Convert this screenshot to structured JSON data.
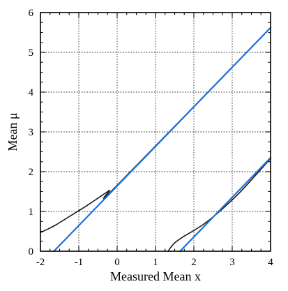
{
  "chart_data": {
    "type": "line",
    "title": "",
    "xlabel": "Measured Mean x",
    "ylabel": "Mean μ",
    "xlim": [
      -2,
      4
    ],
    "ylim": [
      0,
      6
    ],
    "x_ticks": [
      "-2",
      "-1",
      "0",
      "1",
      "2",
      "3",
      "4"
    ],
    "y_ticks": [
      "0",
      "1",
      "2",
      "3",
      "4",
      "5",
      "6"
    ],
    "grid": true,
    "series": [
      {
        "color": "#1a1a1a",
        "style": "curve",
        "points": [
          [
            -2.0,
            0.47
          ],
          [
            -1.8,
            0.56
          ],
          [
            -1.6,
            0.66
          ],
          [
            -1.4,
            0.78
          ],
          [
            -1.2,
            0.9
          ],
          [
            -1.0,
            1.02
          ],
          [
            -0.8,
            1.14
          ],
          [
            -0.6,
            1.27
          ],
          [
            -0.4,
            1.4
          ],
          [
            -0.2,
            1.53
          ],
          [
            0.0,
            1.66
          ],
          [
            4.0,
            5.62
          ]
        ]
      },
      {
        "color": "#1a1a1a",
        "style": "curve",
        "points": [
          [
            1.33,
            0.0
          ],
          [
            1.4,
            0.1
          ],
          [
            1.5,
            0.21
          ],
          [
            1.7,
            0.35
          ],
          [
            2.0,
            0.52
          ],
          [
            2.3,
            0.71
          ],
          [
            2.6,
            0.94
          ],
          [
            2.9,
            1.2
          ],
          [
            3.2,
            1.48
          ],
          [
            3.6,
            1.9
          ],
          [
            4.0,
            2.33
          ]
        ]
      },
      {
        "color": "#1f6fd6",
        "style": "line",
        "points": [
          [
            -1.65,
            0.0
          ],
          [
            4.0,
            5.62
          ]
        ]
      },
      {
        "color": "#1f6fd6",
        "style": "line",
        "points": [
          [
            1.64,
            0.0
          ],
          [
            4.0,
            2.35
          ]
        ]
      }
    ]
  }
}
